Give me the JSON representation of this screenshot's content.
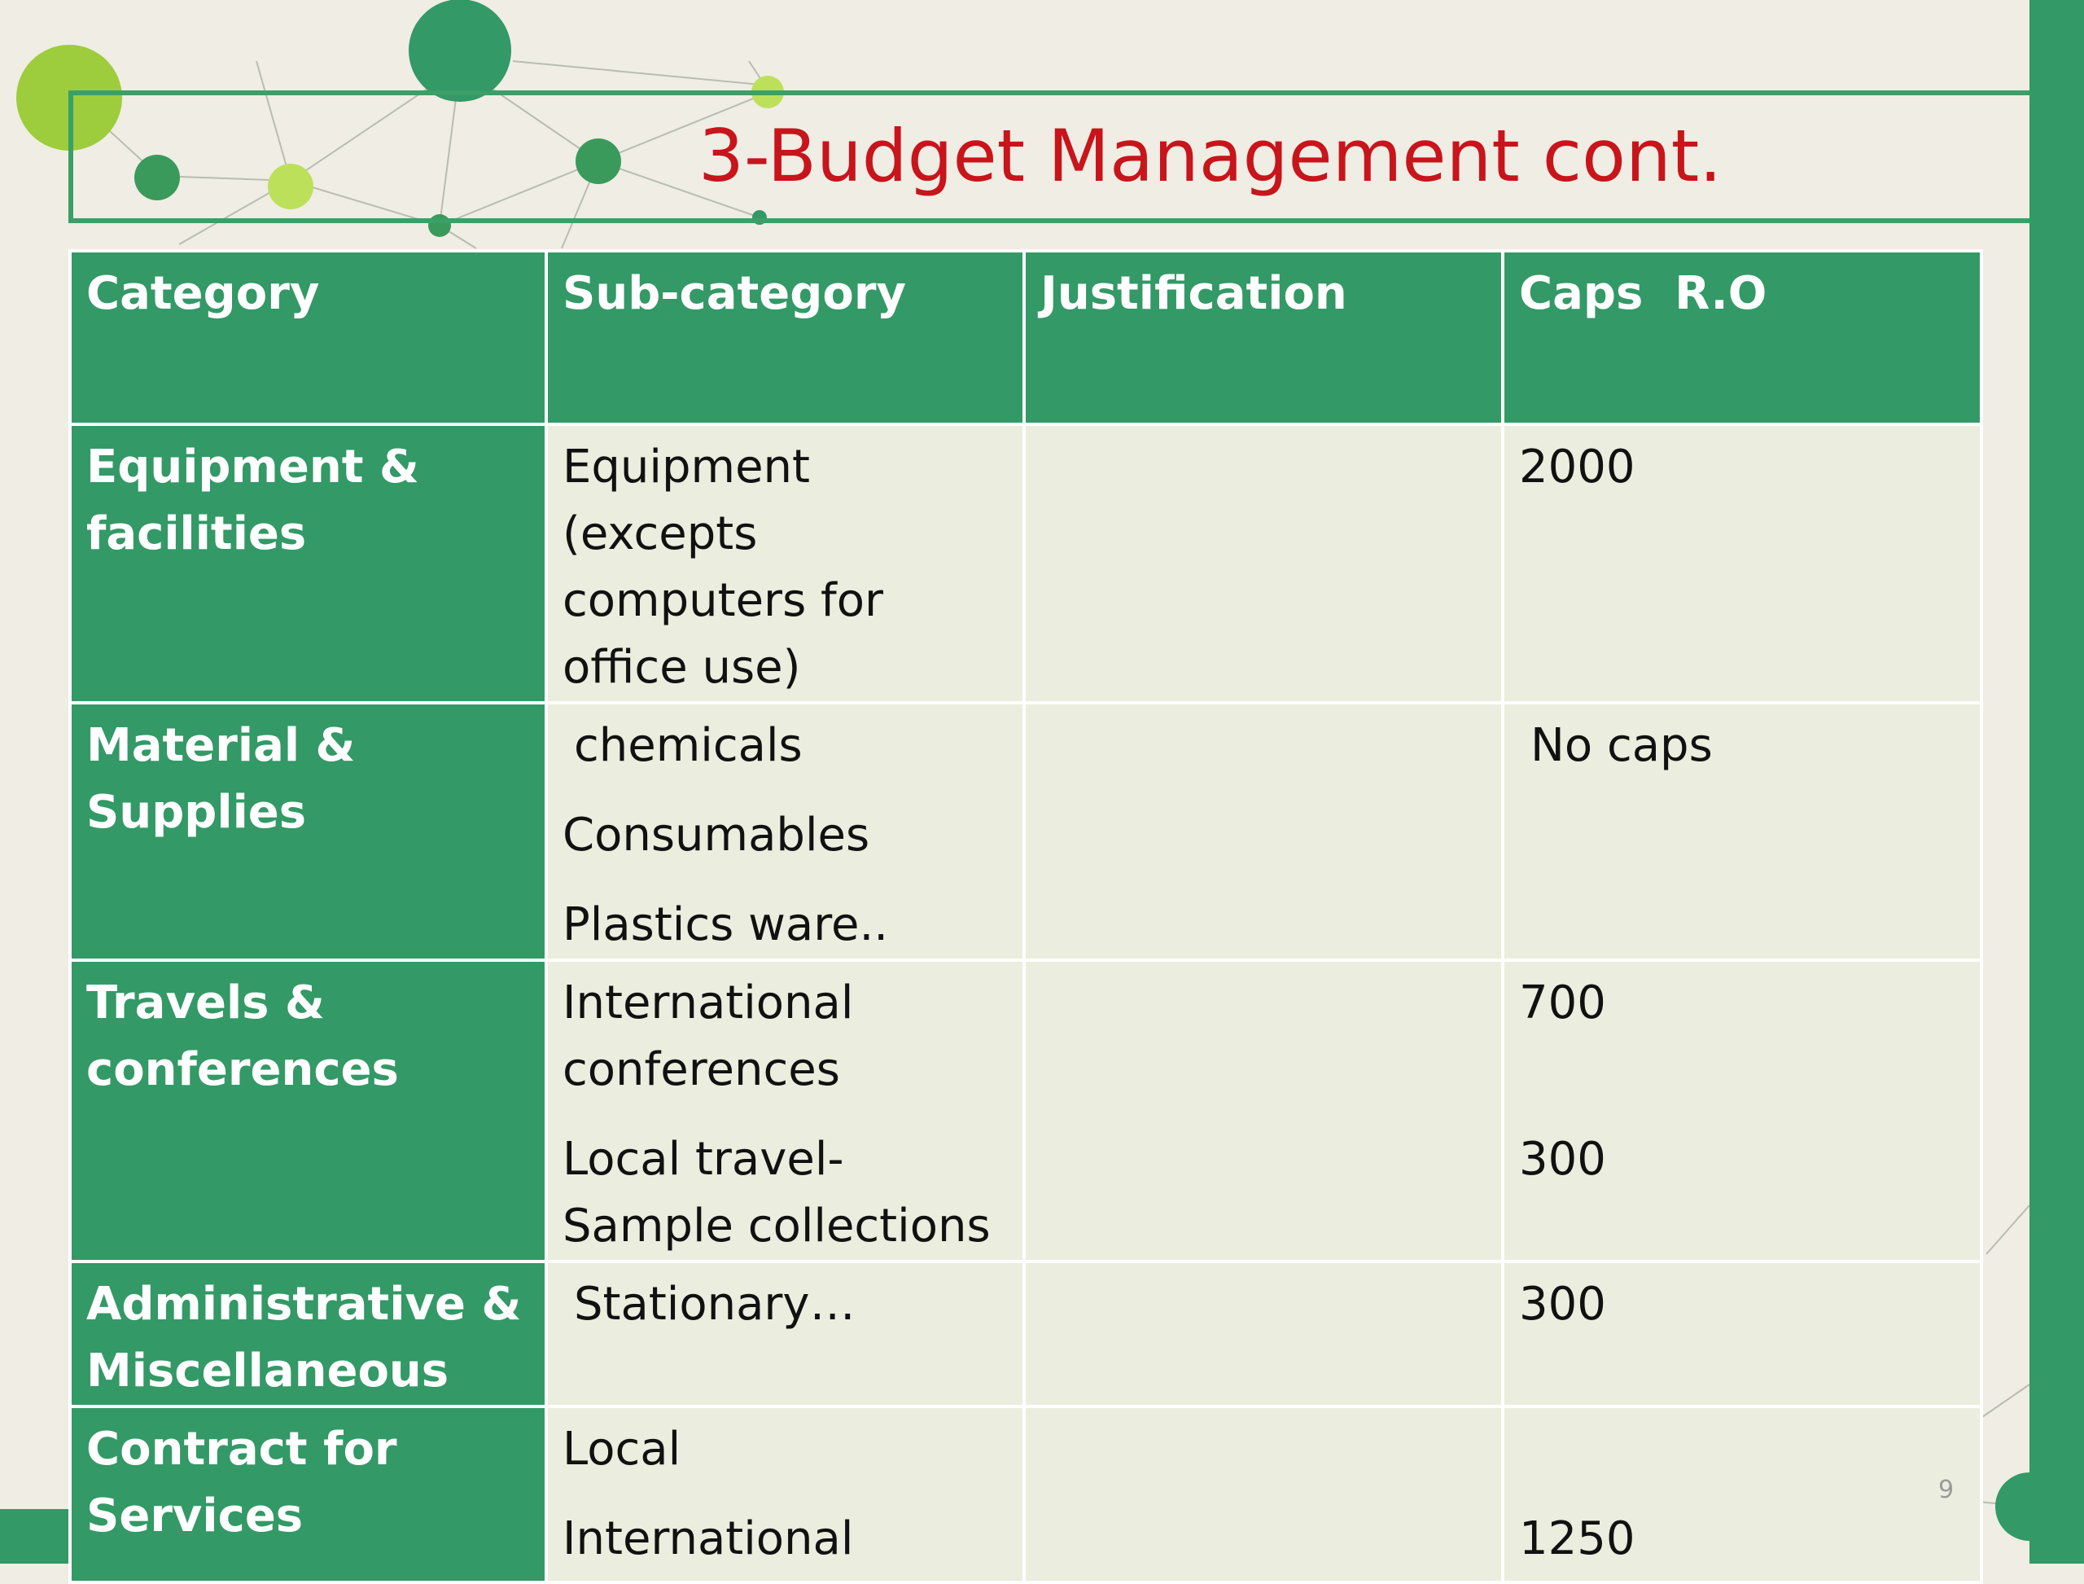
{
  "slide": {
    "title": "3-Budget Management cont.",
    "page_number": "9"
  },
  "table": {
    "headers": [
      "Category",
      "Sub-category",
      "Justification",
      "Caps  R.O"
    ],
    "rows": [
      {
        "category": "Equipment & facilities",
        "subcategories": [
          "Equipment (excepts computers for office use)"
        ],
        "justification": "",
        "caps": [
          "2000"
        ]
      },
      {
        "category": "Material & Supplies",
        "subcategories": [
          "chemicals",
          "Consumables",
          "Plastics ware.."
        ],
        "justification": "",
        "caps": [
          "No caps"
        ]
      },
      {
        "category": "Travels & conferences",
        "subcategories": [
          "International conferences",
          "Local travel-Sample collections"
        ],
        "justification": "",
        "caps": [
          "700",
          "300"
        ]
      },
      {
        "category": "Administrative & Miscellaneous",
        "subcategories": [
          "Stationary…"
        ],
        "justification": "",
        "caps": [
          "300"
        ]
      },
      {
        "category": "Contract for Services",
        "subcategories": [
          "Local",
          "International"
        ],
        "justification": "",
        "caps": [
          "1250"
        ]
      }
    ]
  },
  "colors": {
    "accent_green": "#339966",
    "light_green": "#9dcc3c",
    "title_red": "#c8141b",
    "background": "#efede4",
    "cell_background": "#ebedde"
  }
}
